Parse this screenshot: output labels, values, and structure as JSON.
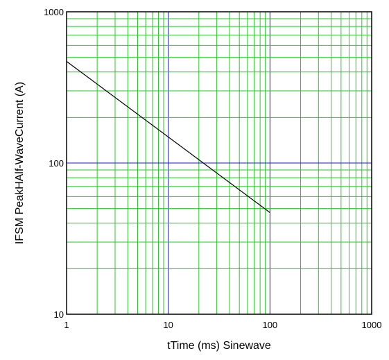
{
  "chart_data": {
    "type": "line",
    "xscale": "log",
    "yscale": "log",
    "xlim": [
      1,
      1000
    ],
    "ylim": [
      10,
      1000
    ],
    "xlabel": "tTime   (ms)  Sinewave",
    "ylabel": "IFSM PeakHAlf-WaveCurrent  (A)",
    "x_tick_labels": [
      "1",
      "10",
      "100",
      "1000"
    ],
    "y_tick_labels": [
      "10",
      "100",
      "1000"
    ],
    "grid": true,
    "colors": {
      "minor_grid": "#22cc22",
      "major_grid": "#1a1acc",
      "line": "#000000",
      "frame": "#000000"
    },
    "series": [
      {
        "x": [
          1,
          100
        ],
        "y": [
          470,
          47
        ]
      }
    ]
  }
}
